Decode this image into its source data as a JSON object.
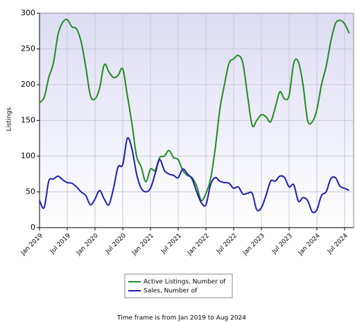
{
  "chart_data": {
    "type": "line",
    "y_label": "Listings",
    "footnote": "Time frame is from Jan 2019 to Aug 2024",
    "categories": [
      "Jan 2019",
      null,
      null,
      null,
      null,
      null,
      "Jul 2019",
      null,
      null,
      null,
      null,
      null,
      "Jan 2020",
      null,
      null,
      null,
      null,
      null,
      "Jul 2020",
      null,
      null,
      null,
      null,
      null,
      "Jan 2021",
      null,
      null,
      null,
      null,
      null,
      "Jul 2021",
      null,
      null,
      null,
      null,
      null,
      "Jan 2022",
      null,
      null,
      null,
      null,
      null,
      "Jul 2022",
      null,
      null,
      null,
      null,
      null,
      "Jan 2023",
      null,
      null,
      null,
      null,
      null,
      "Jul 2023",
      null,
      null,
      null,
      null,
      null,
      "Jan 2024",
      null,
      null,
      null,
      null,
      null,
      "Jul 2024",
      null
    ],
    "series": [
      {
        "name": "Active Listings, Number of",
        "color": "#1e8a1e",
        "values": [
          175,
          182,
          210,
          230,
          270,
          287,
          291,
          281,
          278,
          260,
          225,
          185,
          180,
          195,
          228,
          218,
          210,
          213,
          222,
          185,
          145,
          100,
          85,
          64,
          82,
          80,
          98,
          100,
          108,
          98,
          95,
          80,
          73,
          70,
          58,
          38,
          48,
          68,
          110,
          165,
          200,
          230,
          236,
          241,
          230,
          185,
          143,
          150,
          158,
          155,
          148,
          168,
          190,
          180,
          185,
          230,
          232,
          200,
          150,
          148,
          165,
          200,
          225,
          260,
          285,
          290,
          285,
          272
        ]
      },
      {
        "name": "Sales, Number of",
        "color": "#1c1cb4",
        "values": [
          38,
          28,
          65,
          68,
          72,
          67,
          63,
          62,
          57,
          50,
          45,
          32,
          40,
          52,
          40,
          32,
          55,
          85,
          88,
          125,
          110,
          75,
          55,
          50,
          55,
          75,
          95,
          80,
          75,
          73,
          70,
          82,
          75,
          68,
          50,
          35,
          32,
          60,
          70,
          65,
          63,
          62,
          55,
          57,
          47,
          48,
          48,
          25,
          28,
          45,
          65,
          65,
          72,
          70,
          57,
          60,
          37,
          42,
          38,
          22,
          25,
          45,
          50,
          68,
          70,
          58,
          55,
          52
        ]
      }
    ],
    "ylim": [
      0,
      300
    ],
    "yticks": [
      0,
      50,
      100,
      150,
      200,
      250,
      300
    ],
    "grid": true
  }
}
